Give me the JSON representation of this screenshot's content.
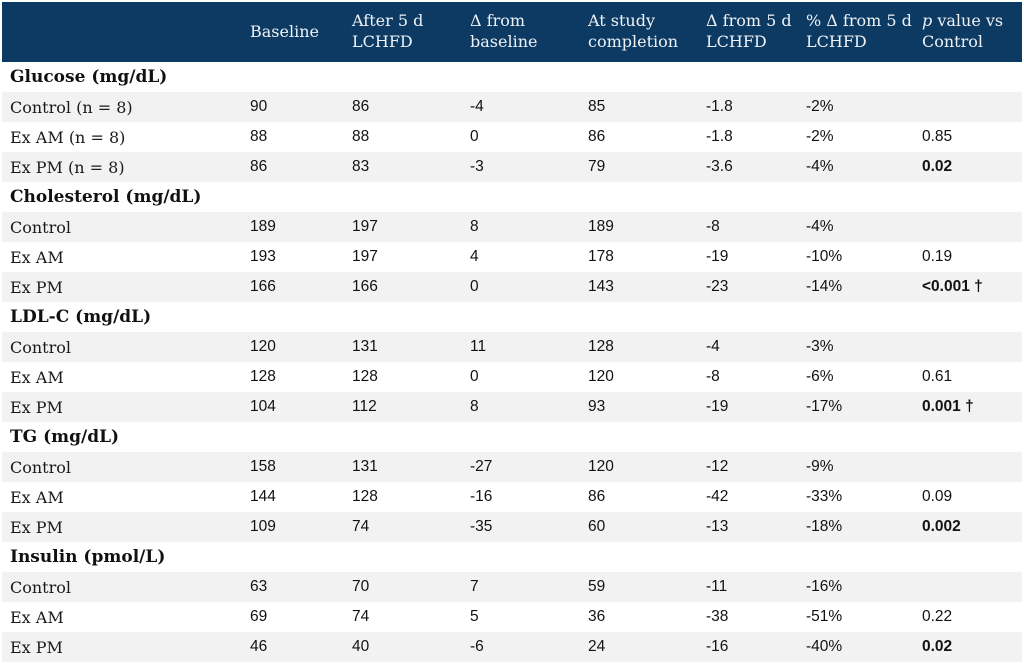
{
  "chart_data": {
    "type": "table",
    "columns": [
      "",
      "Baseline",
      "After 5 d\nLCHFD",
      "Δ from\nbaseline",
      "At study\ncompletion",
      "Δ from 5 d\nLCHFD",
      "% Δ from 5 d\nLCHFD"
    ],
    "p_column_header": {
      "italic": "p",
      "rest": " value vs\nControl"
    },
    "sections": [
      {
        "header": "Glucose (mg/dL)",
        "rows": [
          {
            "label": "Control (n = 8)",
            "values": [
              "90",
              "86",
              "-4",
              "85",
              "-1.8",
              "-2%",
              ""
            ],
            "p_bold": false
          },
          {
            "label": "Ex AM (n = 8)",
            "values": [
              "88",
              "88",
              "0",
              "86",
              "-1.8",
              "-2%",
              "0.85"
            ],
            "p_bold": false
          },
          {
            "label": "Ex PM (n = 8)",
            "values": [
              "86",
              "83",
              "-3",
              "79",
              "-3.6",
              "-4%",
              "0.02"
            ],
            "p_bold": true
          }
        ]
      },
      {
        "header": "Cholesterol (mg/dL)",
        "rows": [
          {
            "label": "Control",
            "values": [
              "189",
              "197",
              "8",
              "189",
              "-8",
              "-4%",
              ""
            ],
            "p_bold": false
          },
          {
            "label": "Ex AM",
            "values": [
              "193",
              "197",
              "4",
              "178",
              "-19",
              "-10%",
              "0.19"
            ],
            "p_bold": false
          },
          {
            "label": "Ex PM",
            "values": [
              "166",
              "166",
              "0",
              "143",
              "-23",
              "-14%",
              "<0.001 †"
            ],
            "p_bold": true
          }
        ]
      },
      {
        "header": "LDL-C (mg/dL)",
        "rows": [
          {
            "label": "Control",
            "values": [
              "120",
              "131",
              "11",
              "128",
              "-4",
              "-3%",
              ""
            ],
            "p_bold": false
          },
          {
            "label": "Ex AM",
            "values": [
              "128",
              "128",
              "0",
              "120",
              "-8",
              "-6%",
              "0.61"
            ],
            "p_bold": false
          },
          {
            "label": "Ex PM",
            "values": [
              "104",
              "112",
              "8",
              "93",
              "-19",
              "-17%",
              "0.001 †"
            ],
            "p_bold": true
          }
        ]
      },
      {
        "header": "TG (mg/dL)",
        "rows": [
          {
            "label": "Control",
            "values": [
              "158",
              "131",
              "-27",
              "120",
              "-12",
              "-9%",
              ""
            ],
            "p_bold": false
          },
          {
            "label": "Ex AM",
            "values": [
              "144",
              "128",
              "-16",
              "86",
              "-42",
              "-33%",
              "0.09"
            ],
            "p_bold": false
          },
          {
            "label": "Ex PM",
            "values": [
              "109",
              "74",
              "-35",
              "60",
              "-13",
              "-18%",
              "0.002"
            ],
            "p_bold": true
          }
        ]
      },
      {
        "header": "Insulin (pmol/L)",
        "rows": [
          {
            "label": "Control",
            "values": [
              "63",
              "70",
              "7",
              "59",
              "-11",
              "-16%",
              ""
            ],
            "p_bold": false
          },
          {
            "label": "Ex AM",
            "values": [
              "69",
              "74",
              "5",
              "36",
              "-38",
              "-51%",
              "0.22"
            ],
            "p_bold": false
          },
          {
            "label": "Ex PM",
            "values": [
              "46",
              "40",
              "-6",
              "24",
              "-16",
              "-40%",
              "0.02"
            ],
            "p_bold": true
          }
        ]
      }
    ]
  },
  "colors": {
    "header_bg": "#0d3a62",
    "header_text": "#eef2f7",
    "stripe_bg": "#f2f2f2",
    "body_text": "#1a1a1a"
  }
}
